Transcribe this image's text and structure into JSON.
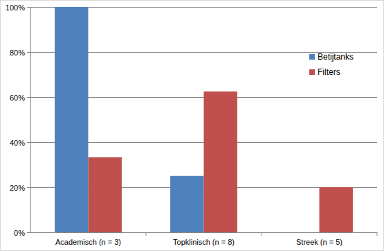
{
  "chart_data": {
    "type": "bar",
    "categories": [
      "Academisch (n = 3)",
      "Topklinisch (n = 8)",
      "Streek (n = 5)"
    ],
    "series": [
      {
        "name": "Betijtanks",
        "color": "#4f81bd",
        "values": [
          100,
          25,
          0
        ]
      },
      {
        "name": "Filters",
        "color": "#c0504d",
        "values": [
          33.3,
          62.5,
          20
        ]
      }
    ],
    "ylim": [
      0,
      100
    ],
    "yticks": [
      {
        "value": 0,
        "label": "0%"
      },
      {
        "value": 20,
        "label": "20%"
      },
      {
        "value": 40,
        "label": "40%"
      },
      {
        "value": 60,
        "label": "60%"
      },
      {
        "value": 80,
        "label": "80%"
      },
      {
        "value": 100,
        "label": "100%"
      }
    ],
    "grid": true,
    "legend": "right"
  }
}
